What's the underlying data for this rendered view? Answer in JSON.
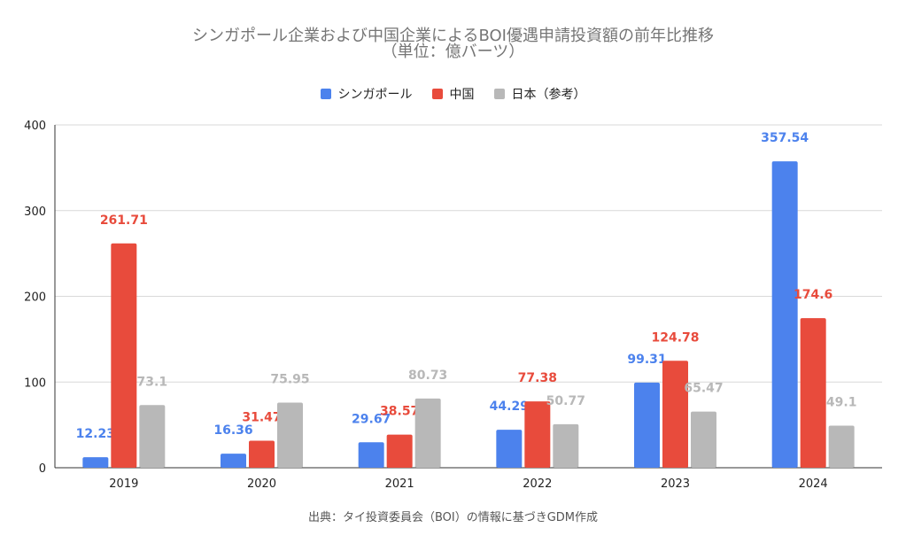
{
  "chart_data": {
    "type": "bar",
    "title": "シンガポール企業および中国企業によるBOI優遇申請投資額の前年比推移",
    "subtitle": "（単位：億バーツ）",
    "categories": [
      "2019",
      "2020",
      "2021",
      "2022",
      "2023",
      "2024"
    ],
    "series": [
      {
        "name": "シンガポール",
        "color": "#4c82ed",
        "values": [
          12.23,
          16.36,
          29.67,
          44.29,
          99.31,
          357.54
        ],
        "labels": [
          "12.23",
          "16.36",
          "29.67",
          "44.29",
          "99.31",
          "357.54"
        ]
      },
      {
        "name": "中国",
        "color": "#e84b3c",
        "values": [
          261.71,
          31.47,
          38.57,
          77.38,
          124.78,
          174.6
        ],
        "labels": [
          "261.71",
          "31.47",
          "38.57",
          "77.38",
          "124.78",
          "174.6"
        ]
      },
      {
        "name": "日本（参考）",
        "color": "#b8b8b8",
        "values": [
          73.1,
          75.95,
          80.73,
          50.77,
          65.47,
          49.1
        ],
        "labels": [
          "73.1",
          "75.95",
          "80.73",
          "50.77",
          "65.47",
          "49.1"
        ]
      }
    ],
    "yticks": [
      "0",
      "100",
      "200",
      "300",
      "400"
    ],
    "ylim": [
      0,
      400
    ],
    "grid": true,
    "legend_position": "top"
  },
  "source": "出典：タイ投資委員会（BOI）の情報に基づきGDM作成"
}
